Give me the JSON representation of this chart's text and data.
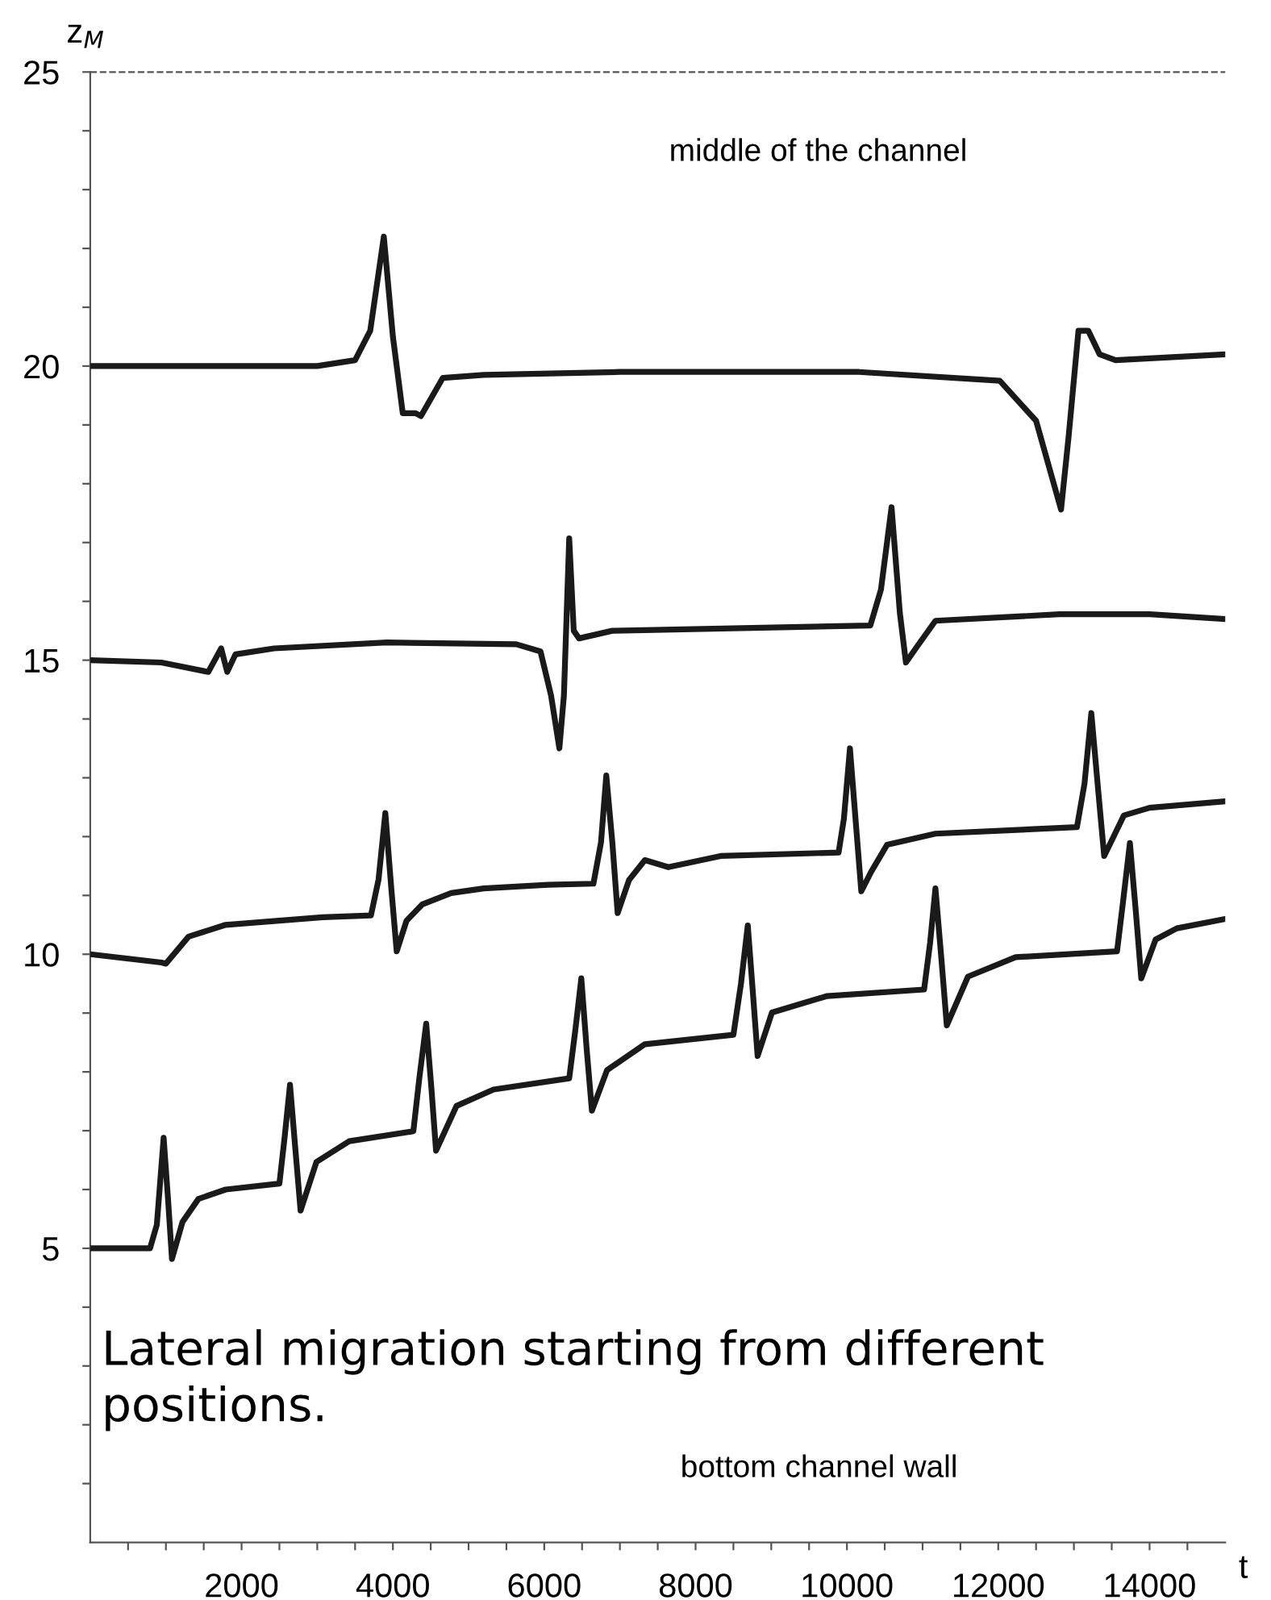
{
  "chart_data": {
    "type": "line",
    "xlabel": "t",
    "ylabel": "z$_{M}$",
    "xlim": [
      0,
      15000
    ],
    "ylim": [
      0,
      25
    ],
    "xticks": [
      {
        "value": 500,
        "label": null
      },
      {
        "value": 1000,
        "label": null
      },
      {
        "value": 1500,
        "label": null
      },
      2000,
      {
        "value": 2500,
        "label": null
      },
      {
        "value": 3000,
        "label": null
      },
      {
        "value": 3500,
        "label": null
      },
      4000,
      {
        "value": 4500,
        "label": null
      },
      {
        "value": 5000,
        "label": null
      },
      {
        "value": 5500,
        "label": null
      },
      6000,
      {
        "value": 6500,
        "label": null
      },
      {
        "value": 7000,
        "label": null
      },
      {
        "value": 7500,
        "label": null
      },
      8000,
      {
        "value": 8500,
        "label": null
      },
      {
        "value": 9000,
        "label": null
      },
      {
        "value": 9500,
        "label": null
      },
      10000,
      {
        "value": 10500,
        "label": null
      },
      {
        "value": 11000,
        "label": null
      },
      {
        "value": 11500,
        "label": null
      },
      12000,
      {
        "value": 12500,
        "label": null
      },
      {
        "value": 13000,
        "label": null
      },
      {
        "value": 13500,
        "label": null
      },
      14000,
      {
        "value": 14500,
        "label": null
      }
    ],
    "yticks": [
      {
        "value": 1,
        "label": null
      },
      {
        "value": 2,
        "label": null
      },
      {
        "value": 3,
        "label": null
      },
      {
        "value": 4,
        "label": null
      },
      5,
      {
        "value": 6,
        "label": null
      },
      {
        "value": 7,
        "label": null
      },
      {
        "value": 8,
        "label": null
      },
      {
        "value": 9,
        "label": null
      },
      10,
      {
        "value": 11,
        "label": null
      },
      {
        "value": 12,
        "label": null
      },
      {
        "value": 13,
        "label": null
      },
      {
        "value": 14,
        "label": null
      },
      15,
      {
        "value": 16,
        "label": null
      },
      {
        "value": 17,
        "label": null
      },
      {
        "value": 18,
        "label": null
      },
      {
        "value": 19,
        "label": null
      },
      20,
      {
        "value": 21,
        "label": null
      },
      {
        "value": 22,
        "label": null
      },
      {
        "value": 23,
        "label": null
      },
      {
        "value": 24,
        "label": null
      },
      25
    ],
    "grid": false,
    "legend": false,
    "marker": "none",
    "line_style": "solid",
    "ref_lines": [
      {
        "axis": "y",
        "value": 25,
        "color": "#555555",
        "line_style": "dashed"
      }
    ],
    "annotations": [
      "middle of the channel",
      "bottom channel wall",
      "Lateral migration starting from different positions."
    ],
    "series": [
      {
        "color": "#1a1a1a",
        "x": [
          0,
          3000,
          3500,
          3700,
          3880,
          4000,
          4130,
          4300,
          4370,
          4660,
          5200,
          7000,
          10160,
          12020,
          12500,
          12830,
          12930,
          13060,
          13190,
          13340,
          13550,
          15000
        ],
        "values": [
          20,
          20,
          20.1,
          20.6,
          22.2,
          20.5,
          19.2,
          19.2,
          19.15,
          19.8,
          19.85,
          19.9,
          19.9,
          19.75,
          19.07,
          17.56,
          18.8,
          20.6,
          20.6,
          20.2,
          20.1,
          20.2
        ]
      },
      {
        "color": "#1a1a1a",
        "x": [
          0,
          940,
          1560,
          1730,
          1810,
          1920,
          2430,
          3920,
          5630,
          5950,
          6090,
          6200,
          6260,
          6330,
          6390,
          6460,
          6900,
          10310,
          10450,
          10590,
          10700,
          10780,
          10910,
          11170,
          12810,
          14000,
          15000
        ],
        "values": [
          15,
          14.96,
          14.8,
          15.2,
          14.8,
          15.1,
          15.2,
          15.3,
          15.27,
          15.15,
          14.4,
          13.5,
          14.4,
          17.07,
          15.5,
          15.37,
          15.5,
          15.59,
          16.2,
          17.6,
          15.8,
          14.96,
          15.2,
          15.67,
          15.78,
          15.78,
          15.7
        ]
      },
      {
        "color": "#1a1a1a",
        "x": [
          0,
          940,
          1000,
          1300,
          1790,
          3070,
          3710,
          3810,
          3900,
          3980,
          4050,
          4180,
          4390,
          4770,
          5200,
          6050,
          6650,
          6750,
          6820,
          6900,
          6970,
          7120,
          7330,
          7640,
          8330,
          9890,
          9960,
          10040,
          10120,
          10190,
          10320,
          10530,
          11170,
          13040,
          13140,
          13230,
          13320,
          13400,
          13660,
          14000,
          15000
        ],
        "values": [
          10,
          9.86,
          9.84,
          10.3,
          10.5,
          10.63,
          10.66,
          11.27,
          12.4,
          11.1,
          10.05,
          10.57,
          10.85,
          11.04,
          11.12,
          11.18,
          11.2,
          11.9,
          13.04,
          11.9,
          10.7,
          11.26,
          11.6,
          11.48,
          11.67,
          11.73,
          12.3,
          13.5,
          12.2,
          11.07,
          11.4,
          11.86,
          12.05,
          12.16,
          12.9,
          14.1,
          12.8,
          11.67,
          12.36,
          12.49,
          12.6
        ]
      },
      {
        "color": "#1a1a1a",
        "x": [
          0,
          790,
          880,
          970,
          1030,
          1080,
          1220,
          1430,
          1790,
          2500,
          2570,
          2640,
          2710,
          2780,
          2990,
          3420,
          4270,
          4350,
          4440,
          4510,
          4570,
          4840,
          5330,
          6330,
          6410,
          6490,
          6560,
          6630,
          6830,
          7330,
          8500,
          8600,
          8690,
          8760,
          8820,
          9010,
          9740,
          11020,
          11100,
          11170,
          11250,
          11320,
          11600,
          12230,
          13570,
          13650,
          13740,
          13820,
          13890,
          14080,
          14360,
          15000
        ],
        "values": [
          5,
          5,
          5.4,
          6.88,
          5.8,
          4.82,
          5.45,
          5.84,
          6.0,
          6.1,
          6.9,
          7.78,
          6.7,
          5.64,
          6.47,
          6.82,
          6.99,
          7.9,
          8.82,
          7.7,
          6.66,
          7.42,
          7.7,
          7.89,
          8.7,
          9.59,
          8.4,
          7.34,
          8.03,
          8.47,
          8.63,
          9.5,
          10.49,
          9.3,
          8.27,
          9.01,
          9.29,
          9.4,
          10.2,
          11.12,
          9.9,
          8.79,
          9.62,
          9.95,
          10.05,
          10.9,
          11.89,
          10.7,
          9.59,
          10.25,
          10.44,
          10.6
        ]
      }
    ]
  }
}
